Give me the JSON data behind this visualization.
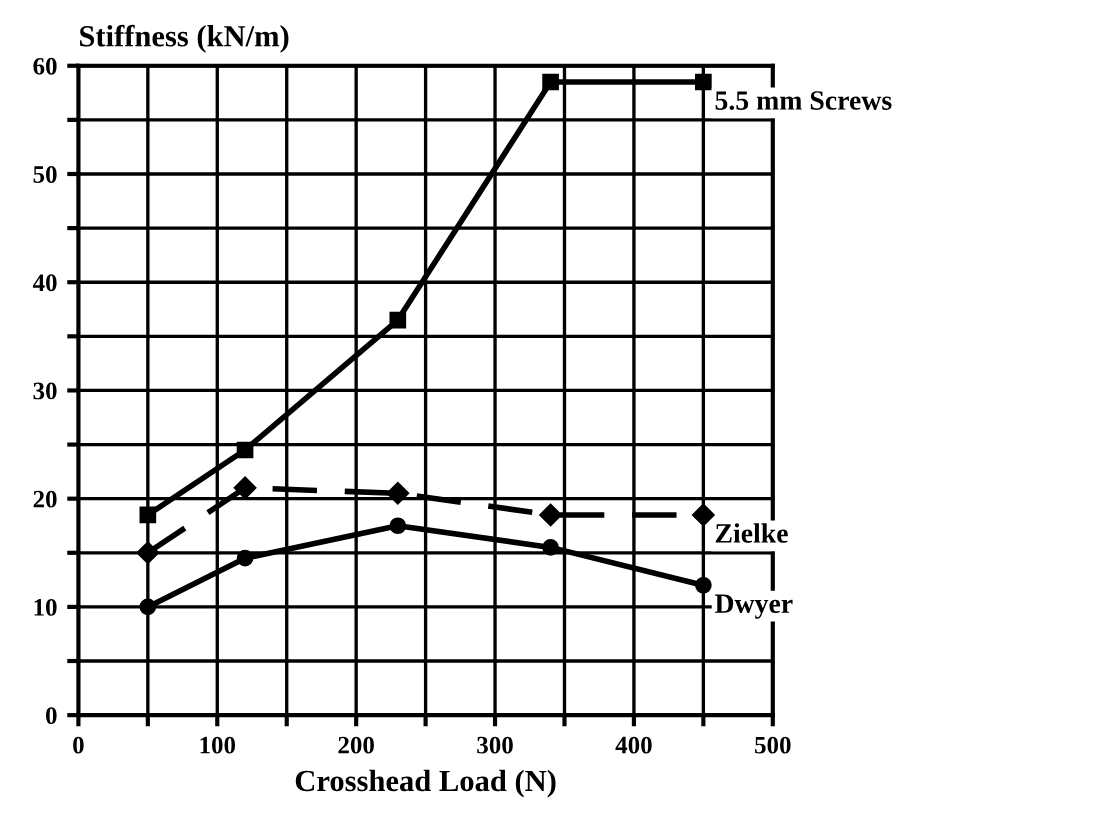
{
  "chart_data": {
    "type": "line",
    "ylabel": "Stiffness (kN/m)",
    "xlabel": "Crosshead Load (N)",
    "xlim": [
      0,
      500
    ],
    "ylim": [
      0,
      60
    ],
    "xticks": [
      0,
      {
        "value": 50,
        "label": null
      },
      100,
      {
        "value": 150,
        "label": null
      },
      200,
      {
        "value": 250,
        "label": null
      },
      300,
      {
        "value": 350,
        "label": null
      },
      400,
      {
        "value": 450,
        "label": null
      },
      500
    ],
    "yticks": [
      0,
      {
        "value": 5,
        "label": null
      },
      10,
      {
        "value": 15,
        "label": null
      },
      20,
      {
        "value": 25,
        "label": null
      },
      30,
      {
        "value": 35,
        "label": null
      },
      40,
      {
        "value": 45,
        "label": null
      },
      50,
      {
        "value": 55,
        "label": null
      },
      60
    ],
    "grid": true,
    "legend": false,
    "x": [
      50,
      120,
      230,
      340,
      450
    ],
    "series": [
      {
        "name": "5.5 mm Screws",
        "color": "#000000",
        "marker": "square",
        "line_style": "solid",
        "values": [
          18.5,
          24.5,
          36.5,
          58.5,
          58.5
        ]
      },
      {
        "name": "Zielke",
        "color": "#000000",
        "marker": "diamond",
        "line_style": "dashed",
        "values": [
          15,
          21,
          20.5,
          18.5,
          18.5
        ]
      },
      {
        "name": "Dwyer",
        "color": "#000000",
        "marker": "circle",
        "line_style": "solid",
        "values": [
          10,
          14.5,
          17.5,
          15.5,
          12
        ]
      }
    ]
  }
}
